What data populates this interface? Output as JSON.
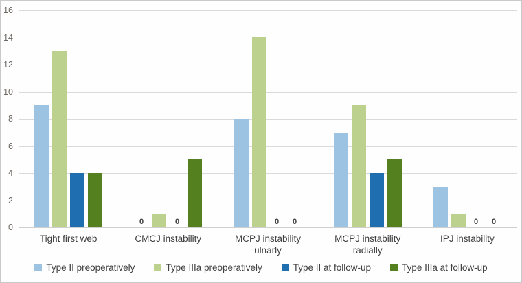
{
  "chart_data": {
    "type": "bar",
    "title": "",
    "xlabel": "",
    "ylabel": "",
    "categories": [
      "Tight first web",
      "CMCJ instability",
      "MCPJ instability ulnarly",
      "MCPJ instability radially",
      "IPJ instability"
    ],
    "series": [
      {
        "name": "Type II preoperatively",
        "color": "#9DC3E2",
        "values": [
          9,
          0,
          8,
          7,
          3
        ]
      },
      {
        "name": "Type IIIa preoperatively",
        "color": "#BCD18E",
        "values": [
          13,
          1,
          14,
          9,
          1
        ]
      },
      {
        "name": "Type II at follow-up",
        "color": "#1F6EB0",
        "values": [
          4,
          0,
          0,
          4,
          0
        ]
      },
      {
        "name": "Type IIIa at follow-up",
        "color": "#55801F",
        "values": [
          4,
          5,
          0,
          5,
          0
        ]
      }
    ],
    "ylim": [
      0,
      16
    ],
    "yticks": [
      0,
      2,
      4,
      6,
      8,
      10,
      12,
      14,
      16
    ],
    "grid": true,
    "legend_position": "bottom",
    "data_labels": "zero-values-only",
    "zero_label_text": "0",
    "colors_meta": {
      "gridline": "#dadada",
      "axis_text": "#6a6560",
      "label_text": "#404040",
      "background": "#fefefe"
    }
  }
}
